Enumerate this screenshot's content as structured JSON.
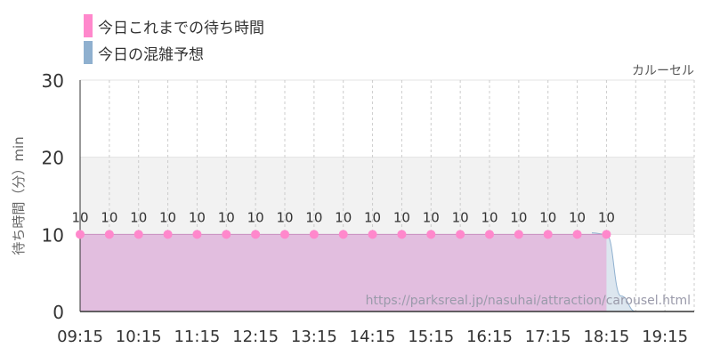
{
  "legend": [
    {
      "label": "今日これまでの待ち時間",
      "color": "#ff88cc"
    },
    {
      "label": "今日の混雑予想",
      "color": "#8fb0cf"
    }
  ],
  "chart_data": {
    "type": "line",
    "attraction_label": "カルーセル",
    "ylabel": "待ち時間（分）min",
    "ylim": [
      0,
      30
    ],
    "yticks": [
      0,
      10,
      20,
      30
    ],
    "xticks": [
      "09:15",
      "10:15",
      "11:15",
      "12:15",
      "13:15",
      "14:15",
      "15:15",
      "16:15",
      "17:15",
      "18:15",
      "19:15"
    ],
    "series": [
      {
        "name": "今日これまでの待ち時間",
        "color": "#ff88cc",
        "fill": "#e2bedf",
        "x": [
          "09:15",
          "09:45",
          "10:15",
          "10:45",
          "11:15",
          "11:45",
          "12:15",
          "12:45",
          "13:15",
          "13:45",
          "14:15",
          "14:45",
          "15:15",
          "15:45",
          "16:15",
          "16:45",
          "17:15",
          "17:45",
          "18:15"
        ],
        "values": [
          10,
          10,
          10,
          10,
          10,
          10,
          10,
          10,
          10,
          10,
          10,
          10,
          10,
          10,
          10,
          10,
          10,
          10,
          10
        ],
        "data_labels": [
          "10",
          "10",
          "10",
          "10",
          "10",
          "10",
          "10",
          "10",
          "10",
          "10",
          "10",
          "10",
          "10",
          "10",
          "10",
          "10",
          "10",
          "10",
          "10"
        ]
      },
      {
        "name": "今日の混雑予想",
        "color": "#8fb0cf",
        "fill": "#dce6ef",
        "x": [
          "18:00",
          "18:15",
          "18:30",
          "18:45",
          "19:00",
          "19:15",
          "19:30"
        ],
        "values": [
          10.2,
          10,
          2,
          0,
          0,
          0,
          0
        ]
      }
    ],
    "band": [
      10,
      20
    ],
    "watermark": "https://parksreal.jp/nasuhai/attraction/carousel.html"
  }
}
